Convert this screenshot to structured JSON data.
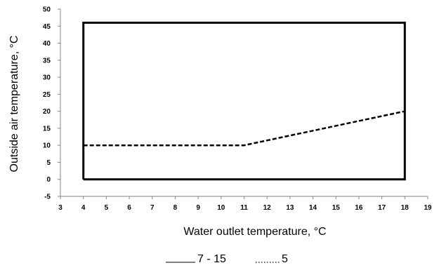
{
  "chart_data": {
    "type": "line",
    "title": "",
    "xlabel": "Water outlet temperature, °C",
    "ylabel": "Outside air temperature, °C",
    "xlim": [
      3,
      19
    ],
    "ylim": [
      -5,
      50
    ],
    "xticks": [
      3,
      4,
      5,
      6,
      7,
      8,
      9,
      10,
      11,
      12,
      13,
      14,
      15,
      16,
      17,
      18,
      19
    ],
    "yticks": [
      -5,
      0,
      5,
      10,
      15,
      20,
      25,
      30,
      35,
      40,
      45,
      50
    ],
    "grid": false,
    "legend_position": "bottom",
    "series": [
      {
        "name": "7 - 15",
        "style": "solid",
        "color": "#000000",
        "points": [
          [
            4,
            0
          ],
          [
            4,
            46
          ],
          [
            18,
            46
          ],
          [
            18,
            0
          ],
          [
            4,
            0
          ]
        ]
      },
      {
        "name": "5",
        "style": "dashed",
        "color": "#000000",
        "points": [
          [
            4,
            10
          ],
          [
            11,
            10
          ],
          [
            18,
            20
          ],
          [
            18,
            46
          ],
          [
            4,
            46
          ]
        ]
      }
    ]
  },
  "legend": {
    "solid_label": "7 - 15",
    "dotted_label": "5"
  }
}
